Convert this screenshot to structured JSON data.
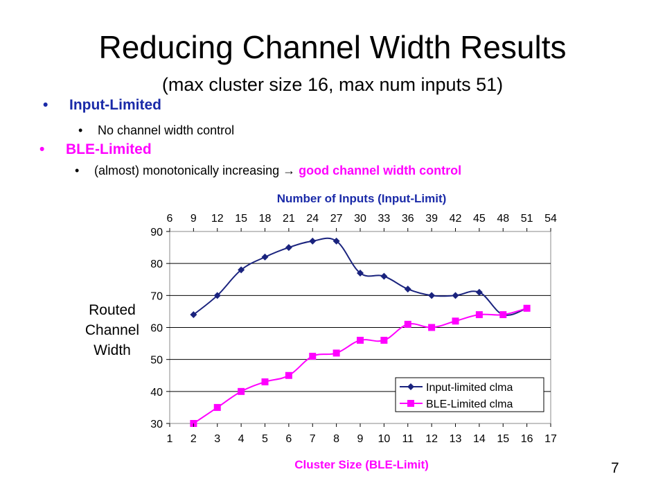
{
  "slide": {
    "title": "Reducing Channel Width Results",
    "subtitle": "(max cluster size 16, max num inputs 51)",
    "page_number": "7"
  },
  "bullets": {
    "input_limited": {
      "marker": "•",
      "label": "Input-Limited",
      "color": "#1a2aa8"
    },
    "input_limited_sub": {
      "marker": "•",
      "text": "No channel width control"
    },
    "ble_limited": {
      "marker": "•",
      "label": "BLE-Limited",
      "color": "#ff00ff"
    },
    "ble_limited_sub": {
      "marker": "•",
      "text": "(almost) monotonically increasing",
      "arrow": "→",
      "highlight": "good channel width control",
      "highlight_color": "#ff00ff"
    }
  },
  "chart_data": {
    "type": "line",
    "x_bottom": {
      "label": "Cluster Size (BLE-Limit)",
      "label_color": "#ff00ff",
      "ticks": [
        1,
        2,
        3,
        4,
        5,
        6,
        7,
        8,
        9,
        10,
        11,
        12,
        13,
        14,
        15,
        16,
        17
      ],
      "range": [
        1,
        17
      ]
    },
    "x_top": {
      "label": "Number of Inputs (Input-Limit)",
      "label_color": "#1a2aa8",
      "ticks": [
        6,
        9,
        12,
        15,
        18,
        21,
        24,
        27,
        30,
        33,
        36,
        39,
        42,
        45,
        48,
        51,
        54
      ]
    },
    "y": {
      "label_lines": [
        "Routed",
        "Channel",
        "Width"
      ],
      "ticks": [
        30,
        40,
        50,
        60,
        70,
        80,
        90
      ],
      "range": [
        30,
        90
      ]
    },
    "grid": "horizontal",
    "legend_position": "bottom-right",
    "series": [
      {
        "name": "Input-limited clma",
        "color": "#1a237e",
        "marker": "diamond",
        "x": [
          2,
          3,
          4,
          5,
          6,
          7,
          8,
          9,
          10,
          11,
          12,
          13,
          14,
          15,
          16
        ],
        "values": [
          64,
          70,
          78,
          82,
          85,
          87,
          87,
          77,
          76,
          72,
          70,
          70,
          71,
          64,
          66
        ]
      },
      {
        "name": "BLE-Limited clma",
        "color": "#ff00ff",
        "marker": "square",
        "x": [
          2,
          3,
          4,
          5,
          6,
          7,
          8,
          9,
          10,
          11,
          12,
          13,
          14,
          15,
          16
        ],
        "values": [
          30,
          35,
          40,
          43,
          45,
          51,
          52,
          56,
          56,
          61,
          60,
          62,
          64,
          64,
          66
        ]
      }
    ]
  }
}
